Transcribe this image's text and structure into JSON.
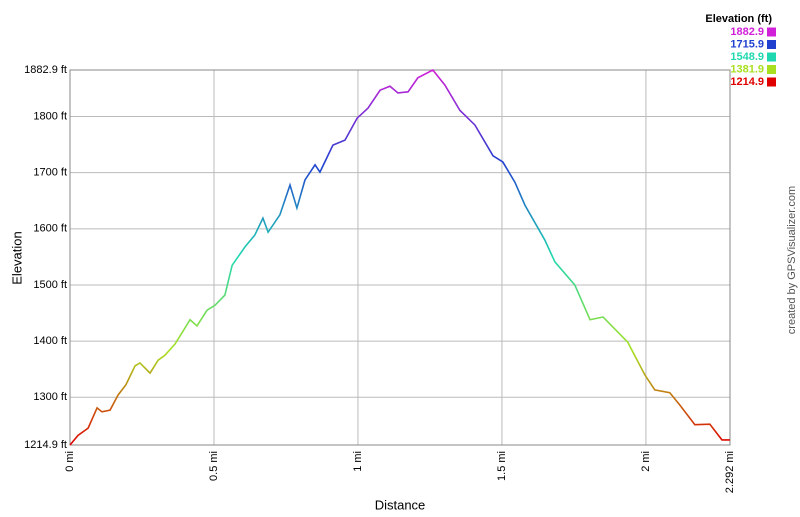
{
  "chart_data": {
    "type": "line",
    "x_label": "Distance",
    "y_label": "Elevation",
    "legend_title": "Elevation (ft)",
    "credit": "created by GPSVisualizer.com",
    "color_scale": [
      {
        "value": 1882.9,
        "color": "#d020d8"
      },
      {
        "value": 1715.9,
        "color": "#2040d0"
      },
      {
        "value": 1548.9,
        "color": "#20d8b0"
      },
      {
        "value": 1381.9,
        "color": "#a8e020"
      },
      {
        "value": 1214.9,
        "color": "#e00000"
      }
    ],
    "x": [
      0,
      0.028,
      0.063,
      0.094,
      0.111,
      0.139,
      0.167,
      0.194,
      0.226,
      0.243,
      0.278,
      0.306,
      0.33,
      0.365,
      0.417,
      0.441,
      0.476,
      0.504,
      0.538,
      0.563,
      0.608,
      0.642,
      0.67,
      0.688,
      0.729,
      0.764,
      0.788,
      0.816,
      0.851,
      0.868,
      0.913,
      0.955,
      0.997,
      1.035,
      1.077,
      1.111,
      1.139,
      1.174,
      1.208,
      1.26,
      1.302,
      1.354,
      1.406,
      1.469,
      1.503,
      1.545,
      1.58,
      1.649,
      1.684,
      1.753,
      1.806,
      1.851,
      1.937,
      1.996,
      2.031,
      2.083,
      2.118,
      2.17,
      2.222,
      2.264,
      2.292
    ],
    "series": [
      {
        "name": "Elevation",
        "values": [
          1214.9,
          1232,
          1245,
          1281,
          1274,
          1277,
          1304,
          1322,
          1356,
          1361,
          1343,
          1366,
          1375,
          1395,
          1438,
          1427,
          1455,
          1464,
          1482,
          1535,
          1568,
          1589,
          1619,
          1594,
          1625,
          1678,
          1637,
          1687,
          1714,
          1701,
          1749,
          1758,
          1797,
          1815,
          1847,
          1854,
          1842,
          1844,
          1869,
          1882.9,
          1856,
          1811,
          1785,
          1730,
          1719,
          1683,
          1642,
          1580,
          1541,
          1500,
          1438,
          1443,
          1398,
          1340,
          1313,
          1308,
          1286,
          1251,
          1252,
          1224,
          1224
        ]
      }
    ],
    "xlim": [
      0,
      2.292
    ],
    "xticks": [
      {
        "value": 0,
        "label": "0 mi"
      },
      {
        "value": 0.5,
        "label": "0.5 mi"
      },
      {
        "value": 1,
        "label": "1 mi"
      },
      {
        "value": 1.5,
        "label": "1.5 mi"
      },
      {
        "value": 2,
        "label": "2 mi"
      },
      {
        "value": 2.292,
        "label": "2.292 mi"
      }
    ],
    "ylim": [
      1214.9,
      1882.9
    ],
    "yticks": [
      {
        "value": 1214.9,
        "label": "1214.9 ft"
      },
      {
        "value": 1300,
        "label": "1300 ft"
      },
      {
        "value": 1400,
        "label": "1400 ft"
      },
      {
        "value": 1500,
        "label": "1500 ft"
      },
      {
        "value": 1600,
        "label": "1600 ft"
      },
      {
        "value": 1700,
        "label": "1700 ft"
      },
      {
        "value": 1800,
        "label": "1800 ft"
      },
      {
        "value": 1882.9,
        "label": "1882.9 ft"
      }
    ],
    "grid": true
  }
}
